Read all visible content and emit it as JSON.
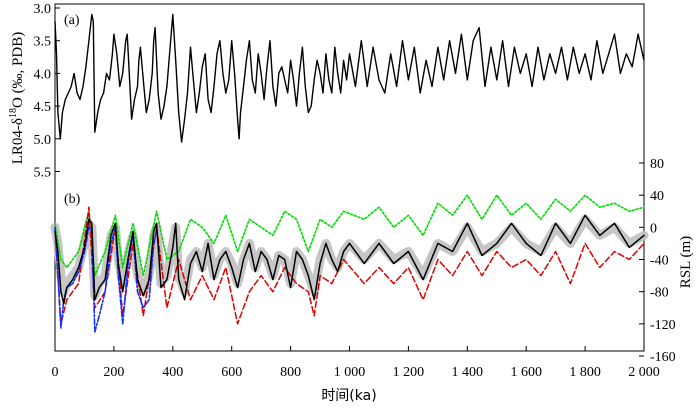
{
  "chart_data": [
    {
      "panel_label": "(a)",
      "type": "line",
      "ylabel": "LR04-δ18O (‰, PDB)",
      "ylabel_parts": {
        "pre": "LR04-δ",
        "sup": "18",
        "post": "O (‰, PDB)"
      },
      "yticks": [
        "3.0",
        "3.5",
        "4.0",
        "4.5",
        "5.0",
        "5.5"
      ],
      "ylim": [
        3.0,
        5.6
      ],
      "y_inverted": true,
      "xlim": [
        0,
        2000
      ],
      "series": [
        {
          "color": "#000000",
          "x": [
            0,
            5,
            10,
            18,
            25,
            35,
            45,
            55,
            65,
            75,
            85,
            95,
            105,
            115,
            125,
            130,
            135,
            145,
            155,
            165,
            175,
            185,
            195,
            200,
            210,
            220,
            230,
            240,
            245,
            250,
            260,
            270,
            280,
            285,
            290,
            300,
            310,
            320,
            330,
            335,
            340,
            350,
            360,
            370,
            380,
            400,
            410,
            420,
            430,
            440,
            450,
            460,
            470,
            480,
            490,
            500,
            510,
            520,
            530,
            540,
            550,
            560,
            570,
            580,
            590,
            600,
            610,
            620,
            625,
            630,
            640,
            650,
            660,
            670,
            680,
            690,
            700,
            710,
            720,
            730,
            740,
            750,
            760,
            770,
            780,
            790,
            800,
            810,
            820,
            830,
            840,
            850,
            860,
            870,
            880,
            890,
            900,
            910,
            920,
            930,
            940,
            950,
            960,
            970,
            980,
            990,
            1000,
            1020,
            1040,
            1060,
            1080,
            1100,
            1120,
            1140,
            1160,
            1180,
            1200,
            1220,
            1240,
            1260,
            1280,
            1300,
            1320,
            1340,
            1360,
            1380,
            1400,
            1420,
            1440,
            1460,
            1480,
            1500,
            1520,
            1540,
            1560,
            1580,
            1600,
            1620,
            1640,
            1660,
            1680,
            1700,
            1720,
            1740,
            1760,
            1780,
            1800,
            1820,
            1840,
            1860,
            1880,
            1900,
            1920,
            1940,
            1960,
            1980,
            2000
          ],
          "values": [
            3.2,
            3.7,
            4.6,
            5.0,
            4.6,
            4.4,
            4.3,
            4.2,
            4.0,
            4.3,
            4.4,
            4.2,
            3.9,
            3.5,
            3.1,
            3.2,
            4.9,
            4.6,
            4.4,
            4.3,
            4.0,
            4.1,
            3.7,
            3.4,
            3.7,
            4.2,
            4.0,
            3.5,
            3.4,
            3.8,
            4.7,
            4.4,
            4.2,
            3.8,
            3.6,
            4.1,
            4.6,
            4.4,
            4.0,
            3.5,
            3.3,
            4.3,
            4.7,
            4.5,
            4.2,
            3.1,
            3.8,
            4.6,
            5.05,
            4.7,
            4.3,
            3.6,
            4.1,
            4.6,
            4.3,
            3.9,
            3.7,
            4.4,
            4.6,
            4.2,
            3.7,
            3.5,
            4.0,
            4.3,
            4.1,
            3.5,
            4.0,
            4.7,
            5.0,
            4.6,
            4.2,
            3.8,
            3.5,
            4.1,
            4.3,
            3.7,
            4.0,
            4.4,
            3.9,
            3.5,
            4.2,
            4.5,
            4.0,
            3.9,
            4.1,
            4.3,
            3.8,
            4.1,
            4.5,
            4.0,
            3.6,
            4.2,
            4.6,
            4.5,
            4.1,
            3.8,
            4.0,
            4.3,
            3.7,
            4.1,
            4.3,
            3.6,
            4.0,
            4.3,
            3.8,
            4.1,
            3.7,
            4.2,
            3.5,
            4.2,
            3.6,
            4.1,
            4.3,
            3.7,
            4.2,
            3.5,
            4.1,
            3.6,
            4.3,
            3.8,
            4.2,
            3.6,
            4.1,
            3.5,
            4.0,
            3.4,
            4.1,
            3.5,
            3.3,
            4.2,
            3.6,
            4.1,
            3.5,
            4.2,
            3.6,
            4.0,
            3.7,
            4.2,
            3.6,
            4.1,
            3.7,
            4.0,
            3.6,
            4.1,
            3.6,
            4.0,
            3.7,
            4.1,
            3.5,
            4.0,
            3.7,
            3.4,
            4.0,
            3.7,
            3.9,
            3.4,
            3.8
          ]
        }
      ]
    },
    {
      "panel_label": "(b)",
      "type": "line",
      "ylabel": "RSL (m)",
      "yticks": [
        "80",
        "40",
        "0",
        "-40",
        "-80",
        "-120",
        "-160"
      ],
      "ylim": [
        -160,
        80
      ],
      "y_axis_side": "right",
      "xlabel": "时间(ka)",
      "xticks": [
        "0",
        "200",
        "400",
        "600",
        "800",
        "1 000",
        "1 200",
        "1 400",
        "1 600",
        "1 800",
        "2 000"
      ],
      "xlim": [
        0,
        2000
      ],
      "series": [
        {
          "color": "#c0c0c0",
          "style": "thick",
          "x": [
            0,
            10,
            20,
            30,
            40,
            60,
            80,
            100,
            115,
            125,
            135,
            150,
            170,
            190,
            205,
            215,
            230,
            250,
            265,
            280,
            300,
            320,
            335,
            345,
            360,
            380,
            400,
            410,
            420,
            440,
            460,
            480,
            500,
            520,
            540,
            560,
            580,
            600,
            620,
            640,
            660,
            680,
            700,
            720,
            740,
            760,
            780,
            800,
            820,
            840,
            860,
            880,
            900,
            920,
            940,
            960,
            980,
            1000,
            1050,
            1100,
            1150,
            1200,
            1250,
            1300,
            1350,
            1400,
            1450,
            1500,
            1550,
            1600,
            1650,
            1700,
            1750,
            1800,
            1850,
            1900,
            1950,
            2000
          ],
          "values": [
            0,
            -20,
            -60,
            -80,
            -70,
            -60,
            -50,
            -20,
            5,
            0,
            -85,
            -70,
            -60,
            -10,
            0,
            -40,
            -70,
            -30,
            -10,
            -60,
            -80,
            -60,
            -10,
            0,
            -70,
            -60,
            -20,
            0,
            -60,
            -80,
            -40,
            -30,
            -50,
            -20,
            -60,
            -40,
            -30,
            -45,
            -70,
            -40,
            -20,
            -50,
            -30,
            -40,
            -60,
            -35,
            -40,
            -70,
            -30,
            -40,
            -60,
            -80,
            -40,
            -20,
            -40,
            -50,
            -30,
            -20,
            -40,
            -20,
            -40,
            -30,
            -60,
            -20,
            -30,
            0,
            -30,
            -20,
            0,
            -20,
            -30,
            0,
            -20,
            10,
            -10,
            0,
            -20,
            -10
          ]
        },
        {
          "color": "#00dd00",
          "style": "dotted",
          "x": [
            0,
            20,
            40,
            80,
            115,
            135,
            170,
            205,
            230,
            265,
            300,
            345,
            380,
            420,
            460,
            500,
            540,
            580,
            620,
            660,
            700,
            740,
            780,
            820,
            860,
            900,
            940,
            980,
            1050,
            1100,
            1150,
            1200,
            1250,
            1300,
            1350,
            1400,
            1450,
            1500,
            1550,
            1600,
            1650,
            1700,
            1750,
            1800,
            1850,
            1900,
            1950,
            2000
          ],
          "values": [
            5,
            -40,
            -50,
            -30,
            20,
            -60,
            -30,
            15,
            -50,
            5,
            -60,
            20,
            -40,
            -30,
            10,
            0,
            -20,
            15,
            -30,
            10,
            0,
            -10,
            20,
            10,
            -30,
            10,
            0,
            20,
            10,
            25,
            0,
            15,
            -10,
            30,
            15,
            40,
            10,
            40,
            15,
            30,
            10,
            35,
            20,
            40,
            25,
            30,
            20,
            25
          ]
        },
        {
          "color": "#e00000",
          "style": "dashed",
          "x": [
            0,
            20,
            40,
            80,
            115,
            135,
            170,
            205,
            230,
            265,
            300,
            345,
            380,
            420,
            460,
            500,
            540,
            580,
            620,
            660,
            700,
            740,
            780,
            820,
            860,
            880,
            900,
            940,
            980,
            1050,
            1100,
            1150,
            1200,
            1250,
            1300,
            1350,
            1400,
            1450,
            1500,
            1550,
            1600,
            1650,
            1700,
            1750,
            1800,
            1850,
            1900,
            1950,
            2000
          ],
          "values": [
            0,
            -120,
            -90,
            -70,
            25,
            -100,
            -80,
            0,
            -110,
            -20,
            -110,
            0,
            -100,
            -40,
            -90,
            -60,
            -90,
            -50,
            -120,
            -80,
            -60,
            -80,
            -50,
            -70,
            -80,
            -110,
            -60,
            -70,
            -40,
            -70,
            -50,
            -70,
            -50,
            -90,
            -40,
            -60,
            -30,
            -60,
            -30,
            -50,
            -40,
            -60,
            -30,
            -70,
            -20,
            -50,
            -30,
            -40,
            -20
          ]
        },
        {
          "color": "#1030ff",
          "style": "dashdot",
          "x": [
            0,
            10,
            20,
            30,
            40,
            60,
            80,
            100,
            115,
            125,
            135,
            150,
            170,
            190,
            205,
            215,
            230,
            250,
            265,
            280,
            300,
            320,
            335,
            345
          ],
          "values": [
            0,
            -60,
            -125,
            -90,
            -75,
            -70,
            -55,
            -30,
            0,
            -5,
            -130,
            -110,
            -80,
            -20,
            0,
            -60,
            -120,
            -40,
            -10,
            -80,
            -100,
            -90,
            -20,
            -5
          ]
        },
        {
          "color": "#000000",
          "style": "solid",
          "x": [
            0,
            10,
            20,
            30,
            40,
            60,
            80,
            100,
            115,
            125,
            135,
            150,
            170,
            190,
            205,
            215,
            230,
            250,
            265,
            280,
            300,
            320,
            335,
            345,
            360,
            380,
            400,
            410,
            420,
            440,
            460,
            480,
            500,
            520,
            540,
            560,
            580,
            600,
            620,
            640,
            660,
            680,
            700,
            720,
            740,
            760,
            780,
            800,
            820,
            840,
            860,
            880,
            900,
            920,
            940,
            960,
            980,
            1000,
            1050,
            1100,
            1150,
            1200,
            1250,
            1300,
            1350,
            1400,
            1450,
            1500,
            1550,
            1600,
            1650,
            1700,
            1750,
            1800,
            1850,
            1900,
            1950,
            2000
          ],
          "values": [
            -5,
            -30,
            -80,
            -95,
            -75,
            -65,
            -50,
            -25,
            10,
            5,
            -90,
            -75,
            -65,
            -10,
            5,
            -45,
            -80,
            -35,
            -5,
            -65,
            -85,
            -65,
            -5,
            5,
            -75,
            -65,
            -25,
            5,
            -65,
            -90,
            -45,
            -30,
            -55,
            -20,
            -65,
            -40,
            -30,
            -50,
            -75,
            -40,
            -20,
            -55,
            -30,
            -40,
            -65,
            -35,
            -40,
            -75,
            -30,
            -40,
            -60,
            -90,
            -45,
            -20,
            -40,
            -55,
            -30,
            -20,
            -45,
            -20,
            -45,
            -30,
            -65,
            -20,
            -30,
            5,
            -35,
            -20,
            5,
            -20,
            -35,
            5,
            -20,
            15,
            -10,
            5,
            -25,
            -10
          ]
        }
      ]
    }
  ]
}
